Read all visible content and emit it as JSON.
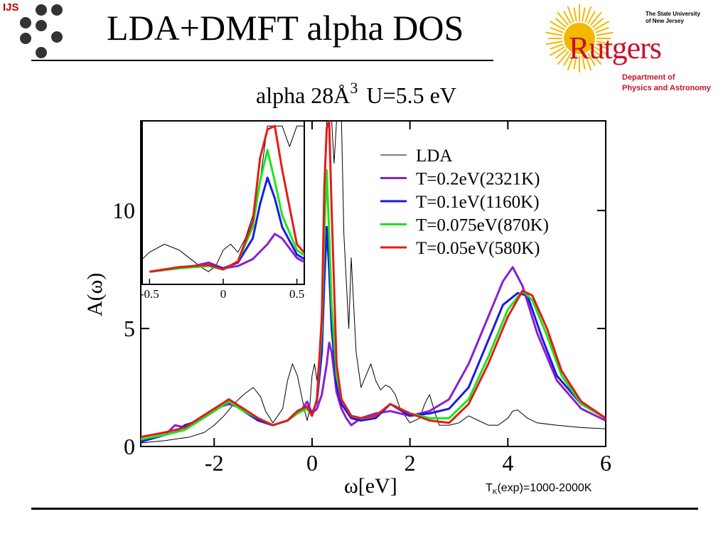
{
  "header": {
    "ijs_label": "IJS",
    "title": "LDA+DMFT alpha DOS"
  },
  "logo": {
    "tag_line1": "The State University",
    "tag_line2": "of New Jersey",
    "name": "Rutgers",
    "dept_line1": "Department of",
    "dept_line2": "Physics and Astronomy",
    "brand_color": "#c8102e",
    "sun_color": "#f5b800"
  },
  "note": {
    "prefix": "T",
    "sub": "K",
    "rest": "(exp)=1000-2000K"
  },
  "chart_data": {
    "type": "line",
    "title": "alpha  28Å",
    "title_sup": "3",
    "title_tail": "U=5.5 eV",
    "xlabel": "ω[eV]",
    "ylabel": "A(ω)",
    "xlim": [
      -3.5,
      6
    ],
    "ylim": [
      0,
      13.8
    ],
    "xticks": [
      -2,
      0,
      2,
      4,
      6
    ],
    "xtick_labels": [
      "-2",
      "0",
      "2",
      "4",
      "6"
    ],
    "yticks": [
      0,
      5,
      10
    ],
    "ytick_labels": [
      "0",
      "5",
      "10"
    ],
    "legend_position": "top-right",
    "series": [
      {
        "name": "LDA",
        "color": "#000000",
        "width": 1,
        "x": [
          -3.5,
          -3.0,
          -2.5,
          -2.2,
          -2.0,
          -1.8,
          -1.6,
          -1.4,
          -1.2,
          -1.05,
          -0.95,
          -0.8,
          -0.6,
          -0.5,
          -0.4,
          -0.3,
          -0.2,
          -0.15,
          -0.1,
          -0.05,
          0.0,
          0.05,
          0.1,
          0.15,
          0.2,
          0.25,
          0.3,
          0.35,
          0.4,
          0.45,
          0.5,
          0.55,
          0.6,
          0.65,
          0.7,
          0.75,
          0.8,
          0.85,
          0.9,
          1.0,
          1.1,
          1.2,
          1.3,
          1.4,
          1.5,
          1.6,
          1.7,
          1.8,
          2.0,
          2.2,
          2.3,
          2.4,
          2.5,
          2.6,
          2.8,
          3.0,
          3.2,
          3.4,
          3.6,
          3.8,
          4.0,
          4.1,
          4.2,
          4.4,
          4.6,
          5.0,
          5.5,
          6.0
        ],
        "y": [
          0.15,
          0.25,
          0.4,
          0.6,
          0.9,
          1.3,
          1.8,
          2.2,
          2.5,
          2.1,
          1.5,
          1.0,
          1.6,
          2.8,
          3.5,
          3.0,
          2.0,
          1.5,
          1.1,
          1.6,
          3.0,
          3.5,
          2.8,
          4.0,
          6.0,
          9.0,
          13.8,
          13.8,
          13.8,
          12.0,
          13.8,
          13.8,
          13.8,
          9.0,
          7.0,
          5.0,
          8.0,
          6.0,
          4.0,
          2.5,
          3.0,
          3.5,
          2.8,
          2.4,
          2.6,
          2.5,
          2.2,
          1.6,
          1.0,
          1.2,
          1.8,
          2.2,
          1.5,
          0.9,
          0.9,
          1.0,
          1.3,
          1.1,
          0.9,
          0.9,
          1.2,
          1.5,
          1.55,
          1.2,
          1.0,
          0.9,
          0.8,
          0.75
        ]
      },
      {
        "name": "T=0.2eV(2321K)",
        "color": "#8b1fd1",
        "width": 3,
        "x": [
          -3.5,
          -3.0,
          -2.8,
          -2.6,
          -2.3,
          -2.0,
          -1.7,
          -1.4,
          -1.1,
          -0.8,
          -0.5,
          -0.3,
          -0.2,
          -0.1,
          0.0,
          0.1,
          0.2,
          0.3,
          0.35,
          0.4,
          0.5,
          0.6,
          0.7,
          0.8,
          1.0,
          1.3,
          1.6,
          2.0,
          2.4,
          2.8,
          3.2,
          3.6,
          3.9,
          4.1,
          4.3,
          4.6,
          5.0,
          5.5,
          6.0
        ],
        "y": [
          0.2,
          0.5,
          0.9,
          0.8,
          1.2,
          1.6,
          1.8,
          1.6,
          1.1,
          0.9,
          1.1,
          1.4,
          1.6,
          1.9,
          1.4,
          1.6,
          2.2,
          3.5,
          4.4,
          4.0,
          2.3,
          1.6,
          1.2,
          0.9,
          1.2,
          1.4,
          1.5,
          1.3,
          1.5,
          2.0,
          3.5,
          5.5,
          7.0,
          7.6,
          6.8,
          4.8,
          2.8,
          1.6,
          1.1
        ]
      },
      {
        "name": "T=0.1eV(1160K)",
        "color": "#1a1ae6",
        "width": 3,
        "x": [
          -3.5,
          -3.0,
          -2.8,
          -2.6,
          -2.3,
          -2.0,
          -1.7,
          -1.4,
          -1.1,
          -0.8,
          -0.5,
          -0.3,
          -0.2,
          -0.1,
          0.0,
          0.1,
          0.2,
          0.25,
          0.3,
          0.35,
          0.4,
          0.5,
          0.6,
          0.8,
          1.0,
          1.3,
          1.6,
          2.0,
          2.4,
          2.8,
          3.2,
          3.6,
          3.9,
          4.2,
          4.4,
          4.7,
          5.0,
          5.5,
          6.0
        ],
        "y": [
          0.2,
          0.5,
          0.6,
          0.9,
          1.1,
          1.5,
          1.9,
          1.5,
          1.1,
          0.9,
          1.1,
          1.5,
          1.6,
          1.7,
          1.4,
          1.9,
          4.0,
          7.0,
          9.3,
          7.5,
          5.0,
          2.6,
          1.8,
          1.2,
          1.1,
          1.2,
          1.8,
          1.3,
          1.4,
          1.6,
          2.5,
          4.5,
          6.0,
          6.5,
          6.4,
          4.6,
          3.0,
          1.8,
          1.2
        ]
      },
      {
        "name": "T=0.075eV(870K)",
        "color": "#19e619",
        "width": 3,
        "x": [
          -3.5,
          -3.0,
          -2.6,
          -2.3,
          -2.0,
          -1.7,
          -1.4,
          -1.1,
          -0.8,
          -0.5,
          -0.3,
          -0.2,
          -0.1,
          0.0,
          0.1,
          0.2,
          0.25,
          0.3,
          0.35,
          0.4,
          0.5,
          0.6,
          0.8,
          1.0,
          1.3,
          1.6,
          2.0,
          2.4,
          2.8,
          3.2,
          3.6,
          4.0,
          4.3,
          4.5,
          4.8,
          5.1,
          5.5,
          6.0
        ],
        "y": [
          0.3,
          0.5,
          0.7,
          1.1,
          1.5,
          1.9,
          1.5,
          1.2,
          0.9,
          1.1,
          1.4,
          1.5,
          1.6,
          1.3,
          2.0,
          5.0,
          9.0,
          11.7,
          9.0,
          6.0,
          3.0,
          2.0,
          1.3,
          1.2,
          1.3,
          1.8,
          1.4,
          1.2,
          1.2,
          2.0,
          3.8,
          5.8,
          6.6,
          6.2,
          4.7,
          3.0,
          1.8,
          1.2
        ]
      },
      {
        "name": "T=0.05eV(580K)",
        "color": "#e61a1a",
        "width": 3,
        "x": [
          -3.5,
          -3.0,
          -2.6,
          -2.3,
          -2.0,
          -1.7,
          -1.4,
          -1.1,
          -0.8,
          -0.5,
          -0.3,
          -0.2,
          -0.1,
          0.0,
          0.1,
          0.2,
          0.25,
          0.3,
          0.35,
          0.4,
          0.5,
          0.6,
          0.8,
          1.0,
          1.3,
          1.6,
          2.0,
          2.4,
          2.8,
          3.2,
          3.6,
          4.0,
          4.3,
          4.5,
          4.8,
          5.1,
          5.5,
          6.0
        ],
        "y": [
          0.4,
          0.6,
          0.8,
          1.2,
          1.6,
          2.0,
          1.6,
          1.2,
          0.9,
          1.1,
          1.5,
          1.6,
          1.7,
          1.3,
          2.0,
          5.5,
          11.0,
          13.5,
          13.8,
          10.0,
          3.5,
          2.0,
          1.3,
          1.2,
          1.3,
          1.8,
          1.4,
          1.1,
          1.0,
          1.8,
          3.5,
          5.5,
          6.6,
          6.4,
          5.0,
          3.2,
          1.9,
          1.2
        ]
      }
    ],
    "inset": {
      "xlim": [
        -0.55,
        0.55
      ],
      "xticks": [
        -0.5,
        0,
        0.5
      ],
      "xtick_labels": [
        "-0.5",
        "0",
        "0.5"
      ],
      "ylim": [
        0,
        14
      ]
    }
  }
}
